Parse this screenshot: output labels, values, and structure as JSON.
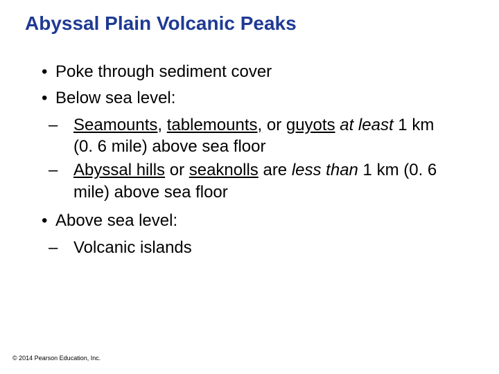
{
  "title": "Abyssal Plain Volcanic Peaks",
  "bullets": {
    "b1": "Poke through sediment cover",
    "b2": "Below sea level:",
    "b2_sub1_seg1": "Seamounts",
    "b2_sub1_seg2": ", ",
    "b2_sub1_seg3": "tablemounts,",
    "b2_sub1_seg4": " or ",
    "b2_sub1_seg5": "guyots",
    "b2_sub1_seg6": " ",
    "b2_sub1_seg7": "at least",
    "b2_sub1_seg8": " 1 km (0. 6 mile) above sea floor",
    "b2_sub2_seg1": "Abyssal hills",
    "b2_sub2_seg2": " or ",
    "b2_sub2_seg3": "seaknolls",
    "b2_sub2_seg4": " are ",
    "b2_sub2_seg5": "less than",
    "b2_sub2_seg6": " 1 km (0. 6 mile) above sea floor",
    "b3": "Above sea level:",
    "b3_sub1": "Volcanic islands"
  },
  "copyright": "© 2014 Pearson Education, Inc.",
  "colors": {
    "title": "#1f3a93",
    "text": "#000000",
    "background": "#ffffff"
  },
  "fontsize": {
    "title": 28,
    "body": 24,
    "copyright": 9
  },
  "glyphs": {
    "bullet": "•",
    "dash": "–"
  }
}
